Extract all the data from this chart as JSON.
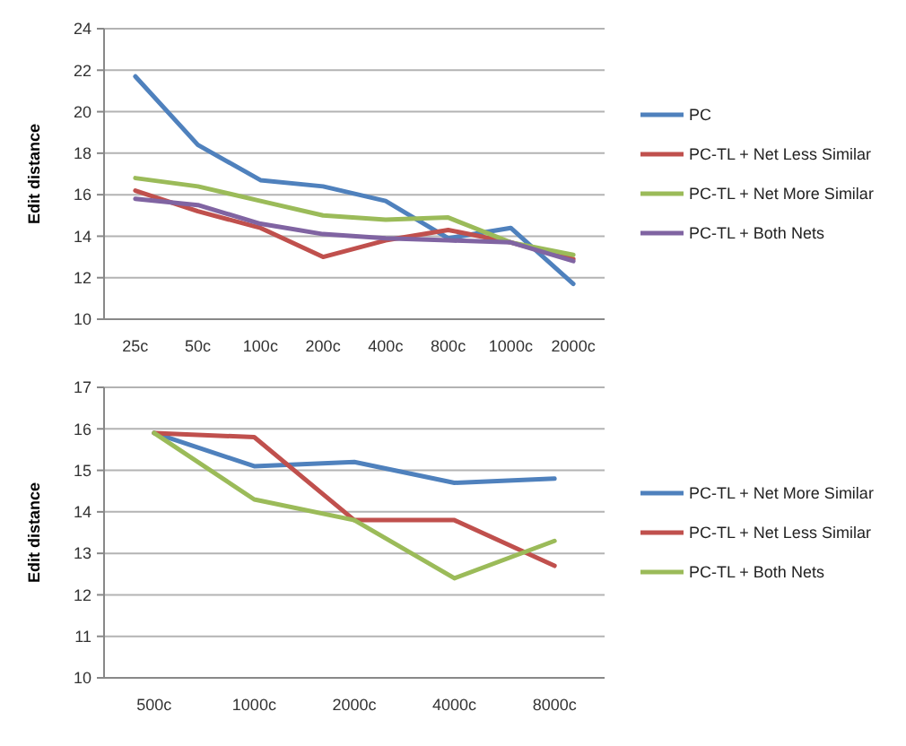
{
  "chart_data": [
    {
      "type": "line",
      "ylabel": "Edit distance",
      "categories": [
        "25c",
        "50c",
        "100c",
        "200c",
        "400c",
        "800c",
        "1000c",
        "2000c"
      ],
      "ylim": [
        10,
        24
      ],
      "yticks": [
        10,
        12,
        14,
        16,
        18,
        20,
        22,
        24
      ],
      "grid": "y",
      "legend": "right",
      "series": [
        {
          "name": "PC",
          "color": "#4f81bd",
          "values": [
            21.7,
            18.4,
            16.7,
            16.4,
            15.7,
            13.9,
            14.4,
            11.7
          ]
        },
        {
          "name": "PC-TL + Net Less Similar",
          "color": "#c0504d",
          "values": [
            16.2,
            15.2,
            14.4,
            13.0,
            13.8,
            14.3,
            13.7,
            12.9
          ]
        },
        {
          "name": "PC-TL + Net More Similar",
          "color": "#9bbb59",
          "values": [
            16.8,
            16.4,
            15.7,
            15.0,
            14.8,
            14.9,
            13.7,
            13.1
          ]
        },
        {
          "name": "PC-TL + Both Nets",
          "color": "#8064a2",
          "values": [
            15.8,
            15.5,
            14.6,
            14.1,
            13.9,
            13.8,
            13.7,
            12.8
          ]
        }
      ]
    },
    {
      "type": "line",
      "ylabel": "Edit distance",
      "categories": [
        "500c",
        "1000c",
        "2000c",
        "4000c",
        "8000c"
      ],
      "ylim": [
        10,
        17
      ],
      "yticks": [
        10,
        11,
        12,
        13,
        14,
        15,
        16,
        17
      ],
      "grid": "y",
      "legend": "right",
      "series": [
        {
          "name": "PC-TL + Net More Similar",
          "color": "#4f81bd",
          "values": [
            15.9,
            15.1,
            15.2,
            14.7,
            14.8
          ]
        },
        {
          "name": "PC-TL + Net Less Similar",
          "color": "#c0504d",
          "values": [
            15.9,
            15.8,
            13.8,
            13.8,
            12.7
          ]
        },
        {
          "name": "PC-TL + Both Nets",
          "color": "#9bbb59",
          "values": [
            15.9,
            14.3,
            13.8,
            12.4,
            13.3
          ]
        }
      ]
    }
  ]
}
